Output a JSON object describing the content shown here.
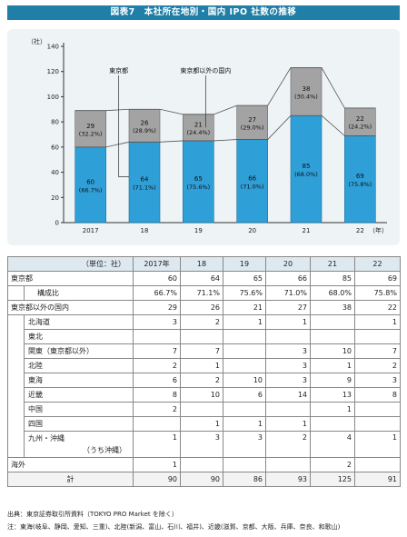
{
  "title": "図表7　本社所在地別・国内 IPO 社数の推移",
  "chart_data": {
    "type": "bar",
    "stacked": true,
    "y_unit_label": "（社）",
    "x_unit_label": "（年）",
    "ylim": [
      0,
      140
    ],
    "yticks": [
      0,
      20,
      40,
      60,
      80,
      100,
      120,
      140
    ],
    "categories": [
      "2017",
      "18",
      "19",
      "20",
      "21",
      "22"
    ],
    "series": [
      {
        "name": "東京都",
        "color": "#2f9fd8",
        "values": [
          60,
          64,
          65,
          66,
          85,
          69
        ],
        "labels": [
          "60",
          "64",
          "65",
          "66",
          "85",
          "69"
        ],
        "pct": [
          "(66.7%)",
          "(71.1%)",
          "(75.6%)",
          "(71.0%)",
          "(68.0%)",
          "(75.8%)"
        ]
      },
      {
        "name": "東京都以外の国内",
        "color": "#a3a3a3",
        "values": [
          29,
          26,
          21,
          27,
          38,
          22
        ],
        "labels": [
          "29",
          "26",
          "21",
          "27",
          "38",
          "22"
        ],
        "pct": [
          "(32.2%)",
          "(28.9%)",
          "(24.4%)",
          "(29.0%)",
          "(30.4%)",
          "(24.2%)"
        ]
      }
    ],
    "grid": false
  },
  "table": {
    "unit": "（単位：社）",
    "years": [
      "2017年",
      "18",
      "19",
      "20",
      "21",
      "22"
    ],
    "tokyo": {
      "label": "東京都",
      "values": [
        "60",
        "64",
        "65",
        "66",
        "85",
        "69"
      ]
    },
    "ratio": {
      "label": "構成比",
      "values": [
        "66.7%",
        "71.1%",
        "75.6%",
        "71.0%",
        "68.0%",
        "75.8%"
      ]
    },
    "domestic": {
      "label": "東京都以外の国内",
      "values": [
        "29",
        "26",
        "21",
        "27",
        "38",
        "22"
      ]
    },
    "regions": [
      {
        "label": "北海道",
        "values": [
          "3",
          "2",
          "1",
          "1",
          "",
          "1"
        ]
      },
      {
        "label": "東北",
        "values": [
          "",
          "",
          "",
          "",
          "",
          ""
        ]
      },
      {
        "label": "関東（東京都以外）",
        "values": [
          "7",
          "7",
          "",
          "3",
          "10",
          "7"
        ]
      },
      {
        "label": "北陸",
        "values": [
          "2",
          "1",
          "",
          "3",
          "1",
          "2"
        ]
      },
      {
        "label": "東海",
        "values": [
          "6",
          "2",
          "10",
          "3",
          "9",
          "3"
        ]
      },
      {
        "label": "近畿",
        "values": [
          "8",
          "10",
          "6",
          "14",
          "13",
          "8"
        ]
      },
      {
        "label": "中国",
        "values": [
          "2",
          "",
          "",
          "",
          "1",
          ""
        ]
      },
      {
        "label": "四国",
        "values": [
          "",
          "1",
          "1",
          "1",
          "",
          ""
        ]
      },
      {
        "label": "九州・沖縄",
        "note": "（うち沖縄）",
        "values": [
          "1",
          "3",
          "3",
          "2",
          "4",
          "1"
        ]
      }
    ],
    "overseas": {
      "label": "海外",
      "values": [
        "1",
        "",
        "",
        "",
        "2",
        ""
      ]
    },
    "total": {
      "label": "計",
      "values": [
        "90",
        "90",
        "86",
        "93",
        "125",
        "91"
      ]
    }
  },
  "footnotes": {
    "source": "出典：東京証券取引所資料（TOKYO PRO Market を除く）",
    "note": "注：東海(岐阜、静岡、愛知、三重)、北陸(新潟、富山、石川、福井)、近畿(滋賀、京都、大阪、兵庫、奈良、和歌山)"
  }
}
